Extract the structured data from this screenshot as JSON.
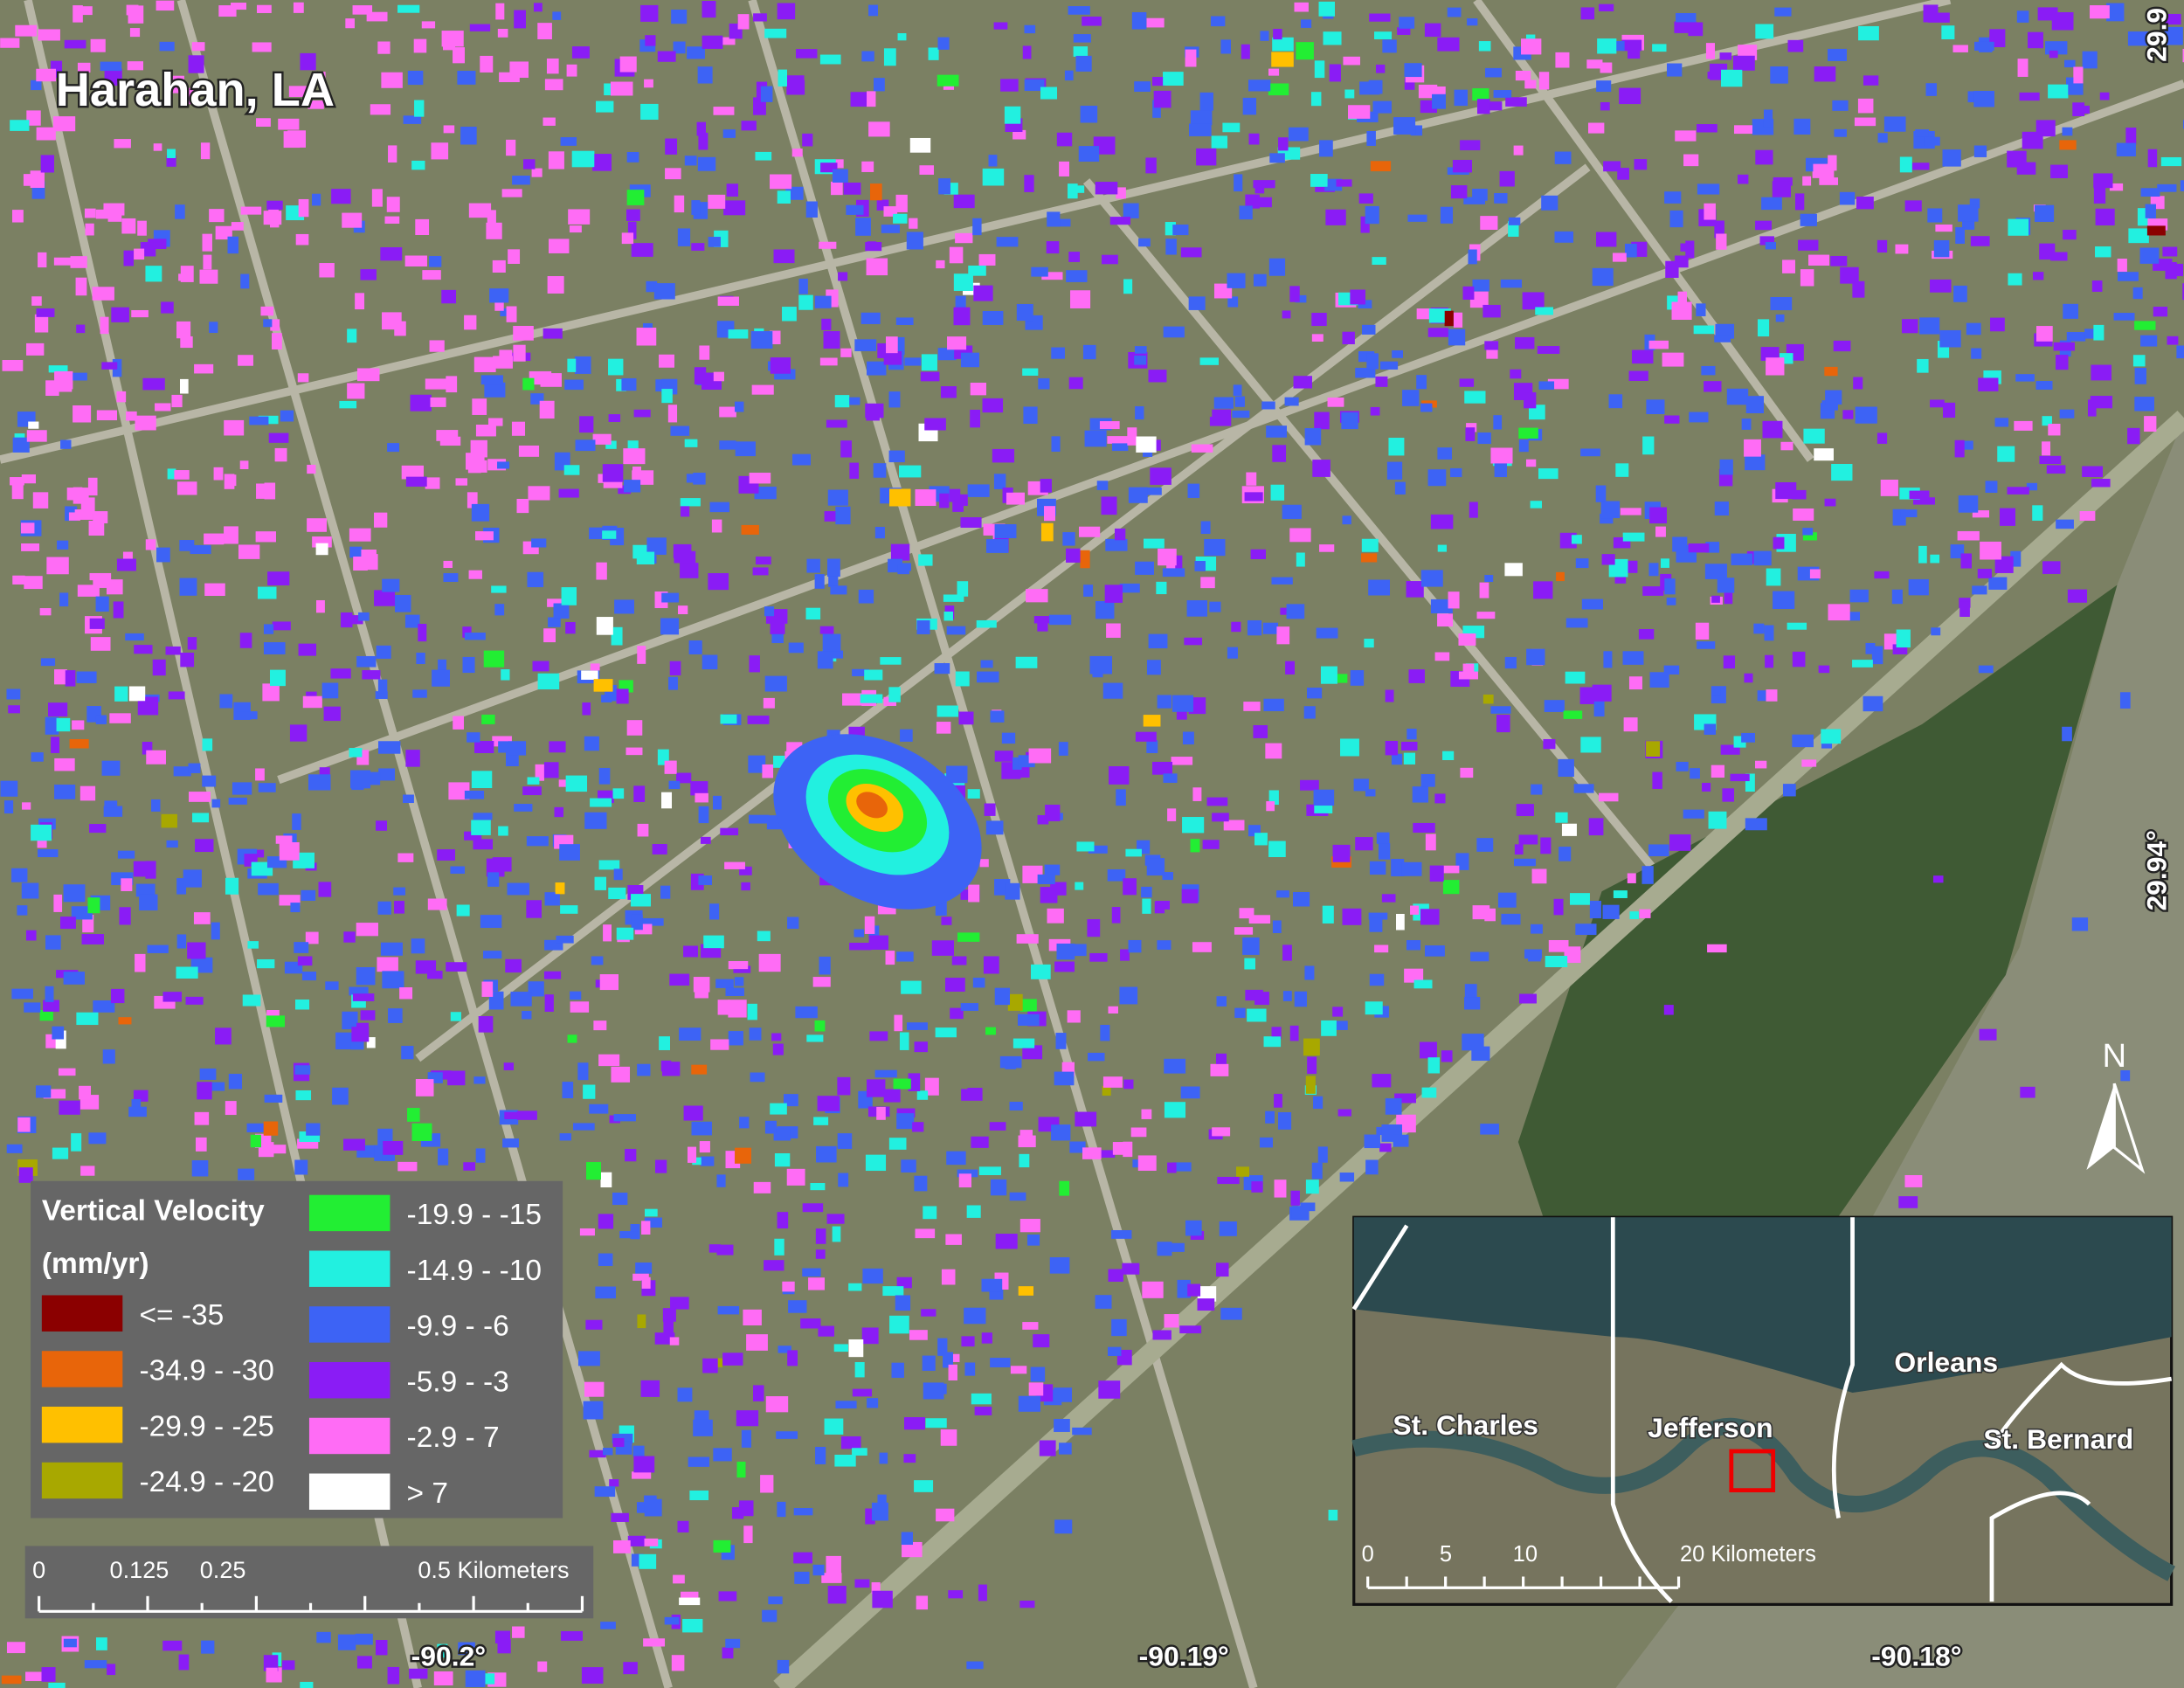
{
  "title": "Harahan, LA",
  "legend": {
    "title": "Vertical Velocity",
    "unit": "(mm/yr)",
    "items": [
      {
        "label": "<= -35",
        "color": "#8b0000"
      },
      {
        "label": "-34.9 - -30",
        "color": "#e8650a"
      },
      {
        "label": "-29.9 - -25",
        "color": "#ffc000"
      },
      {
        "label": "-24.9 - -20",
        "color": "#a8a800"
      },
      {
        "label": "-19.9 - -15",
        "color": "#22ee33"
      },
      {
        "label": "-14.9 - -10",
        "color": "#22f0e0"
      },
      {
        "label": "-9.9 - -6",
        "color": "#3d63f5"
      },
      {
        "label": "-5.9 - -3",
        "color": "#8a1cf5"
      },
      {
        "label": "-2.9 - 7",
        "color": "#ff6cf5"
      },
      {
        "label": "> 7",
        "color": "#ffffff"
      }
    ]
  },
  "scale_bar": [
    "0",
    "0.125",
    "0.25",
    "0.5 Kilometers"
  ],
  "longitude_labels": [
    "-90.2°",
    "-90.19°",
    "-90.18°"
  ],
  "latitude_labels": [
    "29.94°",
    "29.9"
  ],
  "north_arrow": "N",
  "inset": {
    "labels": [
      "St. Charles",
      "Jefferson",
      "Orleans",
      "St. Bernard"
    ],
    "scale_bar": [
      "0",
      "5",
      "10",
      "20 Kilometers"
    ]
  }
}
